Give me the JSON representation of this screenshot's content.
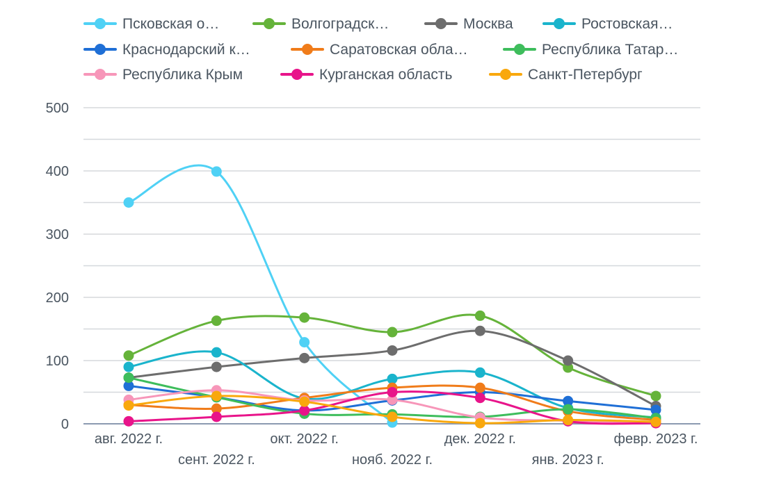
{
  "chart_data": {
    "type": "line",
    "title": "",
    "xlabel": "",
    "ylabel": "",
    "ylim": [
      0,
      500
    ],
    "yticks": [
      0,
      100,
      200,
      300,
      400,
      500
    ],
    "grid": true,
    "smooth": true,
    "legend_position": "top",
    "categories": [
      "авг. 2022 г.",
      "сент. 2022 г.",
      "окт. 2022 г.",
      "нояб. 2022 г.",
      "дек. 2022 г.",
      "янв. 2023 г.",
      "февр. 2023 г."
    ],
    "series": [
      {
        "name": "Псковская о…",
        "color": "#4fd1f5",
        "values": [
          350,
          399,
          129,
          2,
          null,
          null,
          null
        ]
      },
      {
        "name": "Волгоградск…",
        "color": "#65b33a",
        "values": [
          108,
          163,
          168,
          145,
          171,
          89,
          44
        ]
      },
      {
        "name": "Москва",
        "color": "#6d6d6d",
        "values": [
          73,
          90,
          104,
          116,
          147,
          100,
          28
        ]
      },
      {
        "name": "Ростовская…",
        "color": "#1ab4cc",
        "values": [
          90,
          113,
          40,
          71,
          81,
          25,
          10
        ]
      },
      {
        "name": "Краснодарский к…",
        "color": "#1f6fd6",
        "values": [
          60,
          42,
          21,
          37,
          50,
          36,
          22
        ]
      },
      {
        "name": "Саратовская обла…",
        "color": "#f07c1a",
        "values": [
          30,
          24,
          41,
          57,
          57,
          20,
          6
        ]
      },
      {
        "name": "Республика Татар…",
        "color": "#3ebd5c",
        "values": [
          73,
          42,
          16,
          15,
          11,
          23,
          9
        ]
      },
      {
        "name": "Республика Крым",
        "color": "#f796b9",
        "values": [
          38,
          53,
          37,
          38,
          10,
          5,
          2
        ]
      },
      {
        "name": "Курганская область",
        "color": "#e8148a",
        "values": [
          4,
          11,
          21,
          50,
          41,
          4,
          1
        ]
      },
      {
        "name": "Санкт-Петербург",
        "color": "#f9a80d",
        "values": [
          29,
          44,
          35,
          11,
          1,
          6,
          3
        ]
      }
    ]
  }
}
